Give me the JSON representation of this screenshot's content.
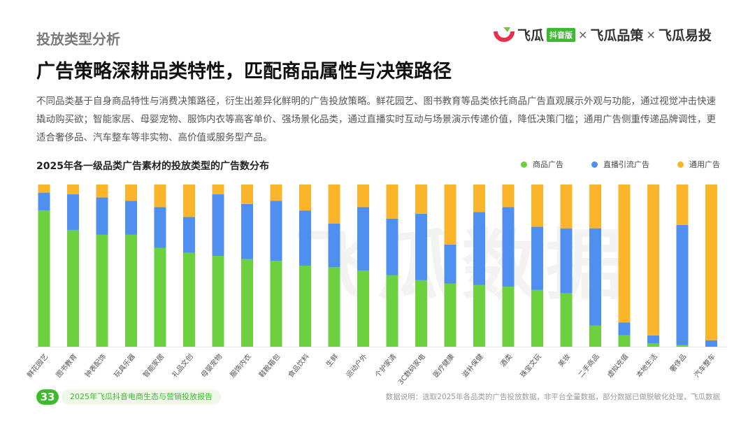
{
  "header": {
    "section": "投放类型分析",
    "logo": {
      "brand": "飞瓜",
      "badge": "抖音版",
      "sep": "×",
      "p2": "飞瓜品策",
      "p3": "飞瓜易投"
    }
  },
  "headline": "广告策略深耕品类特性，匹配商品属性与决策路径",
  "paragraph": "不同品类基于自身商品特性与消费决策路径，衍生出差异化鲜明的广告投放策略。鲜花园艺、图书教育等品类依托商品广告直观展示外观与功能，通过视觉冲击快速撬动购买欲；智能家居、母婴宠物、服饰内衣等高客单价、强场景化品类，通过直播实时互动与场景演示传递价值，降低决策门槛；通用广告侧重传递品牌调性，更适合奢侈品、汽车整车等非实物、高价值或服务型产品。",
  "watermark": "飞瓜数据",
  "footer": {
    "page": "33",
    "title": "2025年飞瓜抖音电商生态与营销投放报告",
    "note": "数据说明：选取2025年各品类的广告投放数据，非平台全量数据，部分数据已做脱敏化处理，飞瓜数据"
  },
  "chart_data": {
    "type": "bar",
    "stacked": true,
    "normalized": true,
    "title": "2025年各一级品类广告素材的投放类型的广告数分布",
    "legend_position": "top-right",
    "categories": [
      "鲜花园艺",
      "图书教育",
      "钟表配饰",
      "玩具乐器",
      "智能家居",
      "礼品文创",
      "母婴宠物",
      "服饰内衣",
      "鞋靴箱包",
      "食品饮料",
      "生鲜",
      "运动户外",
      "个护家清",
      "3C数码家电",
      "医疗健康",
      "滋补保健",
      "酒类",
      "珠宝文玩",
      "美妆",
      "二手商品",
      "虚拟充值",
      "本地生活",
      "奢侈品",
      "汽车整车"
    ],
    "series": [
      {
        "name": "商品广告",
        "color": "#6dd13f",
        "values": [
          84,
          72,
          69,
          69,
          61,
          58,
          56,
          54,
          53,
          50,
          49,
          47,
          44,
          41,
          39,
          38,
          37,
          35,
          33,
          13,
          7,
          2,
          1,
          0
        ]
      },
      {
        "name": "直播引流广告",
        "color": "#4e8ff0",
        "values": [
          11,
          22,
          23,
          21,
          25,
          22,
          38,
          34,
          37,
          34,
          27,
          39,
          35,
          41,
          24,
          45,
          49,
          39,
          40,
          60,
          8,
          5,
          74,
          4
        ]
      },
      {
        "name": "通用广告",
        "color": "#fbb52b",
        "values": [
          5,
          6,
          8,
          10,
          14,
          20,
          6,
          12,
          10,
          16,
          24,
          14,
          21,
          18,
          37,
          17,
          14,
          26,
          27,
          27,
          85,
          93,
          25,
          96
        ]
      }
    ],
    "ylim": [
      0,
      100
    ]
  }
}
